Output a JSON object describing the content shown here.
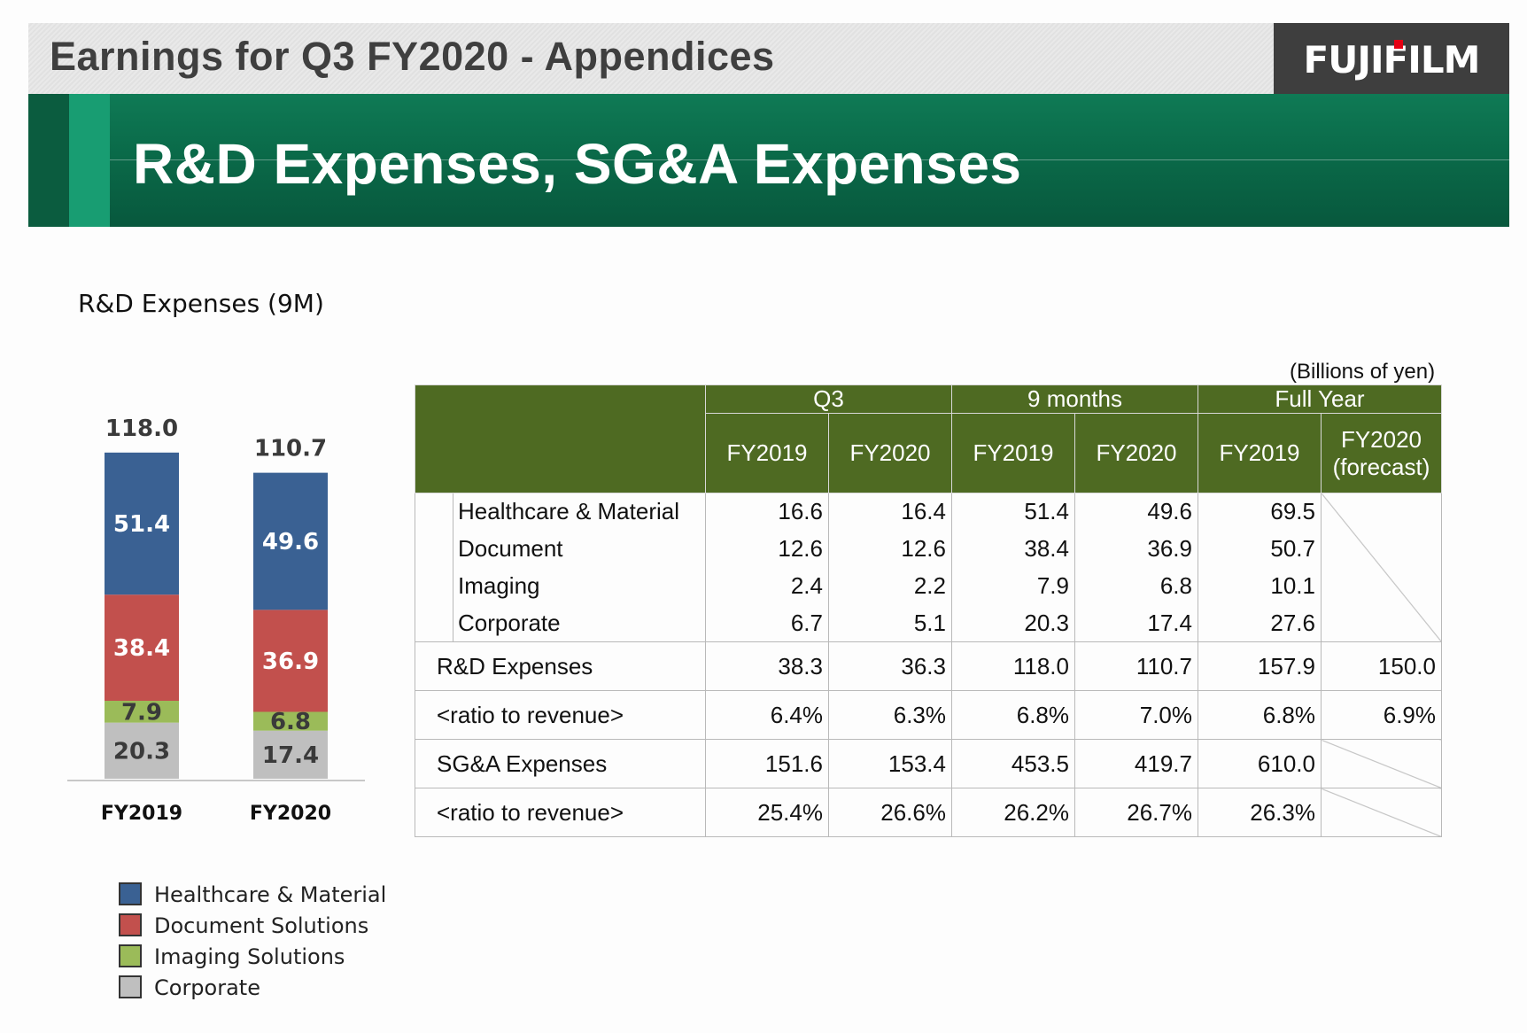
{
  "header": {
    "title": "Earnings for Q3 FY2020 - Appendices",
    "logo": "FUJIFILM"
  },
  "band": {
    "title": "R&D Expenses, SG&A Expenses"
  },
  "chart_data": {
    "type": "bar",
    "stacked": true,
    "title": "R&D Expenses (9M)",
    "categories": [
      "FY2019",
      "FY2020"
    ],
    "totals": [
      "118.0",
      "110.7"
    ],
    "series": [
      {
        "name": "Healthcare & Material",
        "values": [
          51.4,
          49.6
        ],
        "labels": [
          "51.4",
          "49.6"
        ],
        "color": "#3a6193"
      },
      {
        "name": "Document Solutions",
        "values": [
          38.4,
          36.9
        ],
        "labels": [
          "38.4",
          "36.9"
        ],
        "color": "#c2504d"
      },
      {
        "name": "Imaging Solutions",
        "values": [
          7.9,
          6.8
        ],
        "labels": [
          "7.9",
          "6.8"
        ],
        "color": "#9bbb59"
      },
      {
        "name": "Corporate",
        "values": [
          20.3,
          17.4
        ],
        "labels": [
          "20.3",
          "17.4"
        ],
        "color": "#bfbfbf"
      }
    ],
    "legend_position": "bottom-left",
    "grid": false
  },
  "table": {
    "units": "(Billions of yen)",
    "group_headers": [
      "Q3",
      "9 months",
      "Full Year"
    ],
    "column_headers": [
      "FY2019",
      "FY2020",
      "FY2019",
      "FY2020",
      "FY2019",
      "FY2020\n(forecast)"
    ],
    "segment_rows": [
      {
        "label": "Healthcare & Material",
        "values": [
          "16.6",
          "16.4",
          "51.4",
          "49.6",
          "69.5"
        ]
      },
      {
        "label": "Document",
        "values": [
          "12.6",
          "12.6",
          "38.4",
          "36.9",
          "50.7"
        ]
      },
      {
        "label": "Imaging",
        "values": [
          "2.4",
          "2.2",
          "7.9",
          "6.8",
          "10.1"
        ]
      },
      {
        "label": "Corporate",
        "values": [
          "6.7",
          "5.1",
          "20.3",
          "17.4",
          "27.6"
        ]
      }
    ],
    "total_rows": [
      {
        "label": "R&D Expenses",
        "values": [
          "38.3",
          "36.3",
          "118.0",
          "110.7",
          "157.9",
          "150.0"
        ]
      },
      {
        "label": "<ratio to revenue>",
        "values": [
          "6.4%",
          "6.3%",
          "6.8%",
          "7.0%",
          "6.8%",
          "6.9%"
        ]
      },
      {
        "label": "SG&A Expenses",
        "values": [
          "151.6",
          "153.4",
          "453.5",
          "419.7",
          "610.0",
          ""
        ]
      },
      {
        "label": "<ratio to revenue>",
        "values": [
          "25.4%",
          "26.6%",
          "26.2%",
          "26.7%",
          "26.3%",
          ""
        ]
      }
    ]
  }
}
